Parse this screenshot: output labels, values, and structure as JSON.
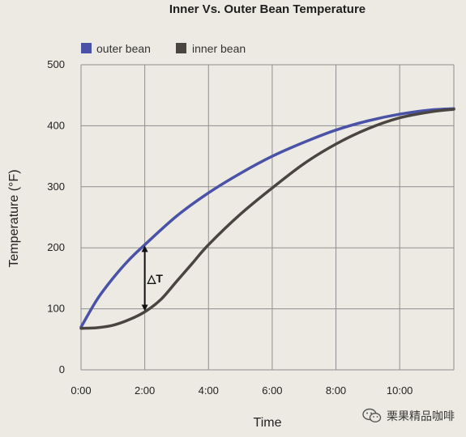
{
  "chart_data": {
    "type": "line",
    "title": "Inner Vs. Outer Bean Temperature",
    "xlabel": "Time",
    "ylabel": "Temperature (°F)",
    "x_unit": "minutes",
    "xlim": [
      0,
      11.7
    ],
    "ylim": [
      0,
      500
    ],
    "grid": true,
    "legend_position": "top-left",
    "x_tick_labels": [
      "0:00",
      "2:00",
      "4:00",
      "6:00",
      "8:00",
      "10:00"
    ],
    "x_tick_values": [
      0,
      2,
      4,
      6,
      8,
      10
    ],
    "y_tick_labels": [
      "0",
      "100",
      "200",
      "300",
      "400",
      "500"
    ],
    "y_tick_values": [
      0,
      100,
      200,
      300,
      400,
      500
    ],
    "series": [
      {
        "name": "outer bean",
        "color": "#4a52a8",
        "x": [
          0,
          0.5,
          1,
          1.5,
          2,
          3,
          4,
          5,
          6,
          7,
          8,
          9,
          10,
          11,
          11.7
        ],
        "y": [
          70,
          115,
          150,
          180,
          205,
          252,
          290,
          322,
          350,
          373,
          393,
          408,
          419,
          426,
          428
        ]
      },
      {
        "name": "inner bean",
        "color": "#4a4540",
        "x": [
          0,
          0.5,
          1,
          1.5,
          2,
          2.5,
          3,
          3.5,
          4,
          5,
          6,
          7,
          8,
          9,
          10,
          11,
          11.7
        ],
        "y": [
          68,
          69,
          73,
          82,
          95,
          115,
          145,
          175,
          205,
          255,
          298,
          338,
          370,
          395,
          413,
          423,
          427
        ]
      }
    ],
    "annotations": [
      {
        "label": "△T",
        "x": 2,
        "y_from": 205,
        "y_to": 95
      }
    ]
  },
  "watermark": {
    "text": "栗果精品咖啡",
    "icon": "wechat-icon"
  }
}
